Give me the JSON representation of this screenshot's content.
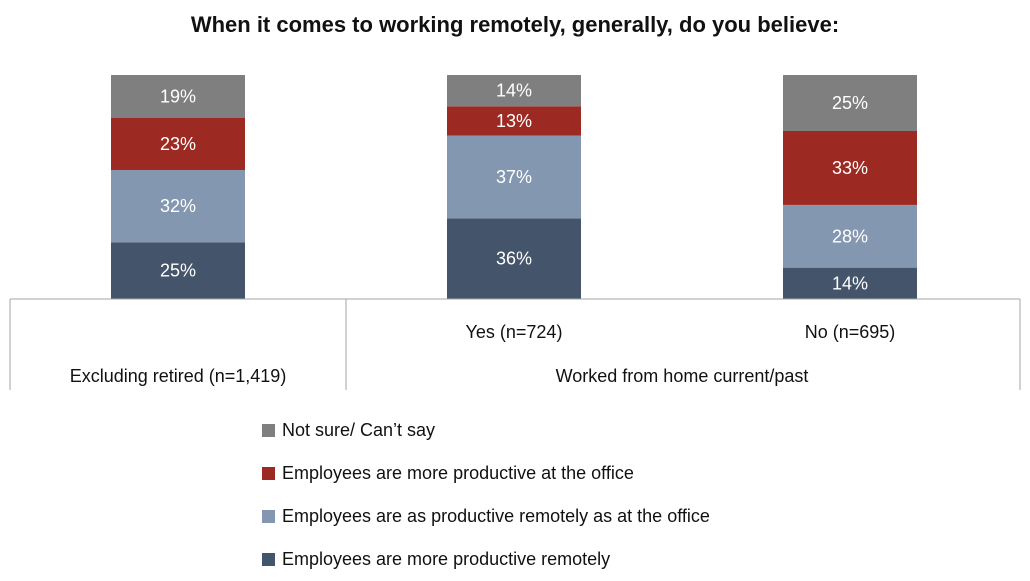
{
  "chart_data": {
    "type": "bar",
    "stacked": true,
    "normalized": true,
    "title": "When it comes to working remotely, generally, do you believe:",
    "xlabel": "",
    "ylabel": "",
    "ylim": [
      0,
      100
    ],
    "grid": false,
    "legend_position": "bottom",
    "categories": [
      "Excluding retired (n=1,419)",
      "Yes (n=724)",
      "No (n=695)"
    ],
    "group_labels": [
      {
        "label": "",
        "categories": [
          "Excluding retired (n=1,419)"
        ]
      },
      {
        "label": "Worked from home current/past",
        "categories": [
          "Yes (n=724)",
          "No (n=695)"
        ]
      }
    ],
    "series": [
      {
        "name": "Employees are more productive remotely",
        "values": [
          25,
          36,
          14
        ],
        "labels": [
          "25%",
          "36%",
          "14%"
        ],
        "color": "#44546a"
      },
      {
        "name": "Employees are as productive remotely as at the office",
        "values": [
          32,
          37,
          28
        ],
        "labels": [
          "32%",
          "37%",
          "28%"
        ],
        "color": "#8497b0"
      },
      {
        "name": "Employees are more productive at the office",
        "values": [
          23,
          13,
          33
        ],
        "labels": [
          "23%",
          "13%",
          "33%"
        ],
        "color": "#9c2a22"
      },
      {
        "name": "Not sure/ Can’t say",
        "values": [
          19,
          14,
          25
        ],
        "labels": [
          "19%",
          "14%",
          "25%"
        ],
        "color": "#7f7f7f"
      }
    ],
    "legend_order": [
      3,
      2,
      1,
      0
    ]
  }
}
